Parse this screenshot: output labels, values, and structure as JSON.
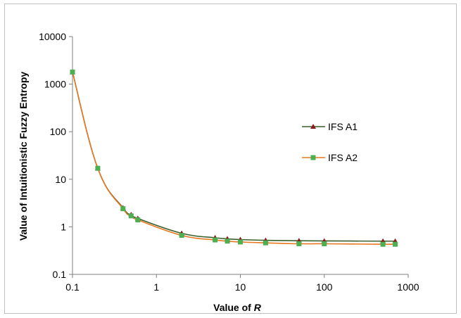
{
  "chart_data": {
    "type": "line",
    "xscale": "log",
    "yscale": "log",
    "xlim": [
      0.1,
      1000
    ],
    "ylim": [
      0.1,
      10000
    ],
    "xticks": [
      "0.1",
      "1",
      "10",
      "100",
      "1000"
    ],
    "yticks": [
      "0.1",
      "1",
      "10",
      "100",
      "1000",
      "10000"
    ],
    "xlabel": "Value of ",
    "xlabel_var": "R",
    "ylabel": "Value of Intuitionistic Fuzzy Entropy",
    "grid": false,
    "legend_position": "right",
    "series": [
      {
        "name": "IFS A1",
        "color": "#3a5f2a",
        "marker": "triangle",
        "marker_color": "#8b1a1a",
        "x": [
          0.1,
          0.2,
          0.4,
          0.5,
          0.6,
          2,
          5,
          7,
          10,
          20,
          50,
          100,
          500,
          700
        ],
        "y": [
          1800,
          17,
          2.5,
          1.8,
          1.5,
          0.73,
          0.59,
          0.56,
          0.54,
          0.52,
          0.51,
          0.505,
          0.5,
          0.5
        ]
      },
      {
        "name": "IFS A2",
        "color": "#e87722",
        "marker": "square",
        "marker_color": "#4caf50",
        "x": [
          0.1,
          0.2,
          0.4,
          0.5,
          0.6,
          2,
          5,
          7,
          10,
          20,
          50,
          100,
          500,
          700
        ],
        "y": [
          1800,
          17,
          2.4,
          1.7,
          1.4,
          0.66,
          0.53,
          0.5,
          0.48,
          0.46,
          0.44,
          0.44,
          0.43,
          0.43
        ]
      }
    ]
  }
}
